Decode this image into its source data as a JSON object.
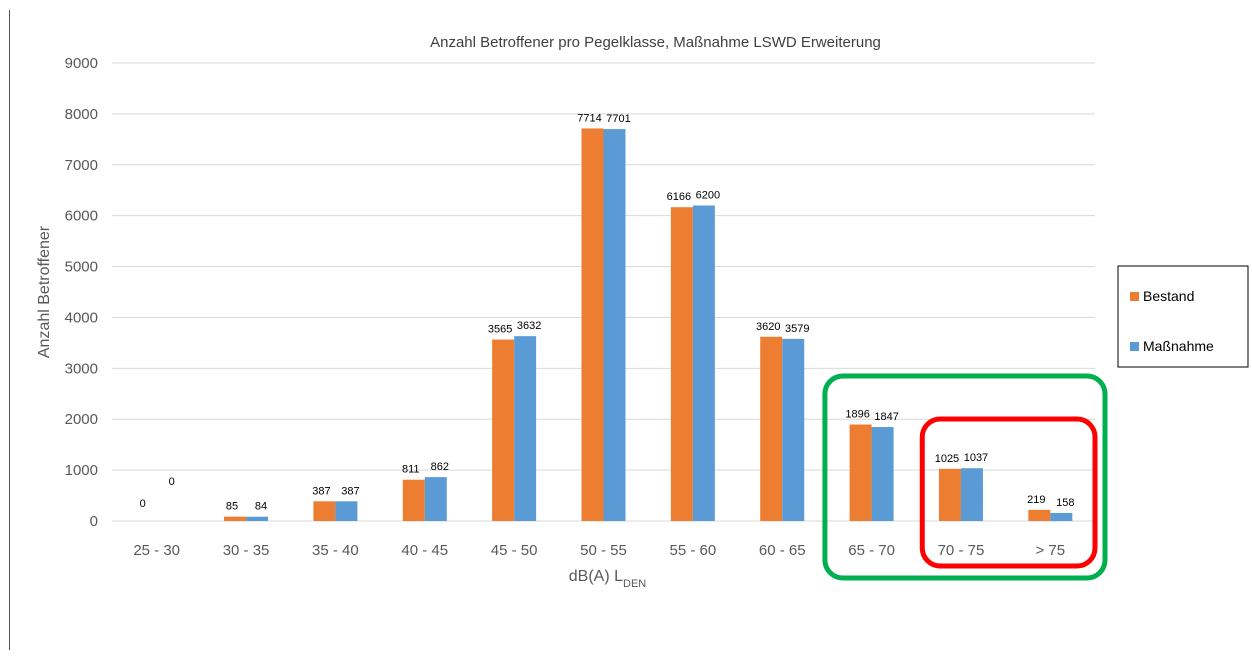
{
  "chart_data": {
    "type": "bar",
    "title": "Anzahl Betroffener pro Pegelklasse, Maßnahme LSWD Erweiterung",
    "xlabel": "dB(A) L",
    "xlabel_sub": "DEN",
    "ylabel": "Anzahl Betroffener",
    "ylim": [
      0,
      9000
    ],
    "yticks": [
      "0",
      "1000",
      "2000",
      "3000",
      "4000",
      "5000",
      "6000",
      "7000",
      "8000",
      "9000"
    ],
    "grid": true,
    "legend_position": "right",
    "categories": [
      "25 - 30",
      "30 - 35",
      "35 - 40",
      "40 - 45",
      "45 - 50",
      "50 - 55",
      "55 - 60",
      "60 - 65",
      "65 - 70",
      "70 - 75",
      "> 75"
    ],
    "series": [
      {
        "name": "Bestand",
        "color": "#ED7D31",
        "values": [
          0,
          85,
          387,
          811,
          3565,
          7714,
          6166,
          3620,
          1896,
          1025,
          219
        ]
      },
      {
        "name": "Maßnahme",
        "color": "#5B9BD5",
        "values": [
          0,
          84,
          387,
          862,
          3632,
          7701,
          6200,
          3579,
          1847,
          1037,
          158
        ]
      }
    ],
    "highlights": [
      {
        "color": "#00B050",
        "from": "65 - 70",
        "to": "> 75"
      },
      {
        "color": "#FF0000",
        "from": "70 - 75",
        "to": "> 75"
      }
    ]
  }
}
